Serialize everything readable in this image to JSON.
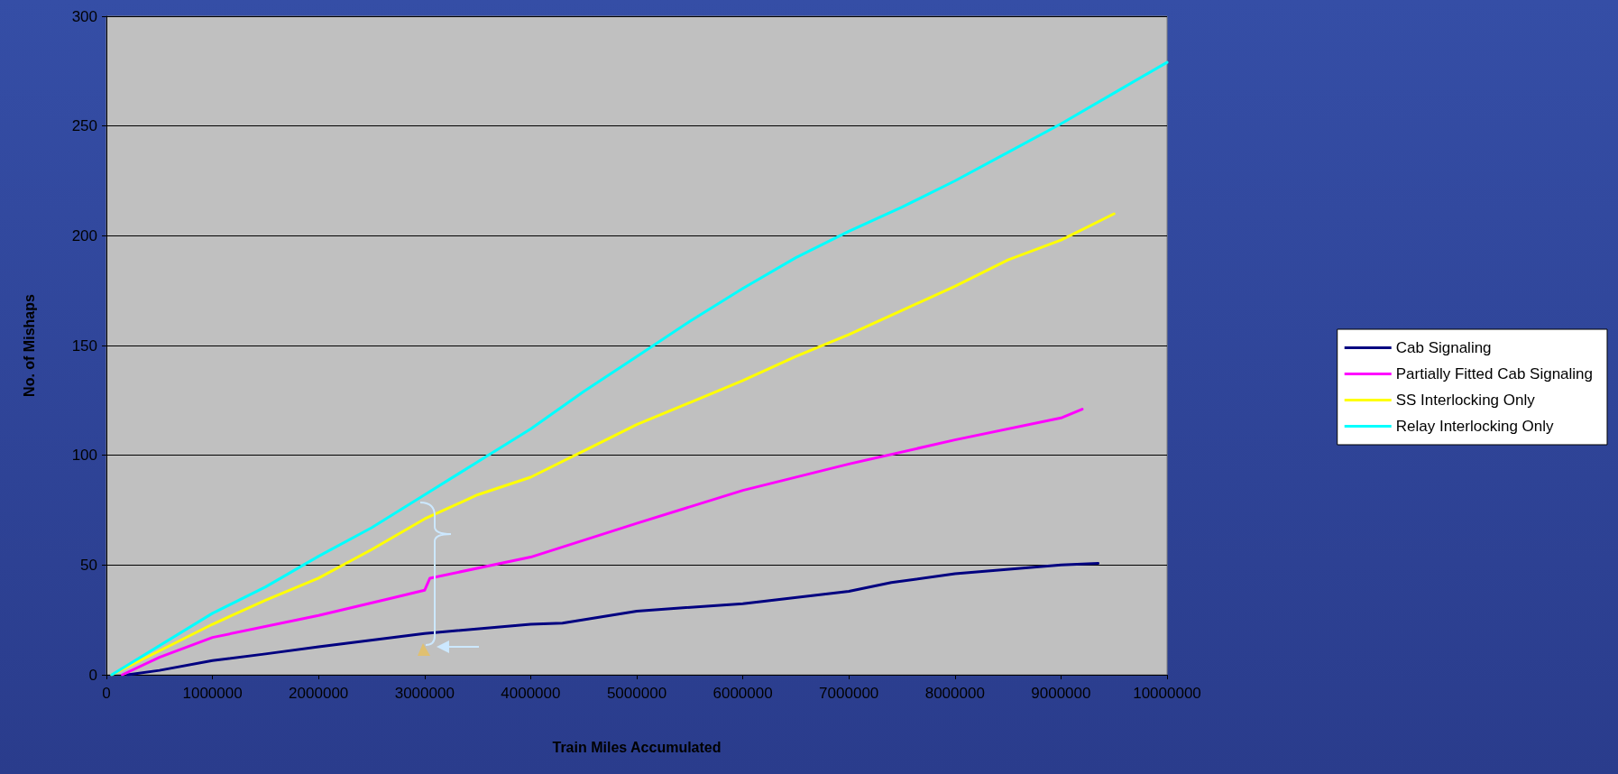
{
  "chart_data": {
    "type": "line",
    "xlabel": "Train Miles Accumulated",
    "ylabel": "No. of Mishaps",
    "xlim": [
      0,
      10000000
    ],
    "xticks": [
      0,
      1000000,
      2000000,
      3000000,
      4000000,
      5000000,
      6000000,
      7000000,
      8000000,
      9000000,
      10000000
    ],
    "ylim": [
      0,
      300
    ],
    "yticks": [
      0,
      50,
      100,
      150,
      200,
      250,
      300
    ],
    "grid": "y",
    "legend": "right",
    "marker": "none",
    "line_style": "solid",
    "series": [
      {
        "name": "Cab Signaling",
        "color": "#000080",
        "x": [
          200000,
          500000,
          1000000,
          1500000,
          2000000,
          3000000,
          4000000,
          4300000,
          5000000,
          6000000,
          7000000,
          7400000,
          8000000,
          9000000,
          9350000
        ],
        "values": [
          0,
          2,
          6.5,
          9.5,
          12.7,
          18.8,
          23,
          23.5,
          29,
          32.4,
          38,
          42,
          46,
          50,
          50.8
        ]
      },
      {
        "name": "Partially Fitted Cab Signaling",
        "color": "#ff00ff",
        "x": [
          150000,
          500000,
          1000000,
          2000000,
          2700000,
          3000000,
          3050000,
          4000000,
          5000000,
          6000000,
          7000000,
          8000000,
          9000000,
          9200000
        ],
        "values": [
          0,
          8,
          17,
          27,
          35,
          38.5,
          44,
          53.6,
          69,
          84,
          96,
          107,
          117,
          121
        ]
      },
      {
        "name": "SS Interlocking Only",
        "color": "#ffff00",
        "x": [
          50000,
          1000000,
          1500000,
          2000000,
          2500000,
          3000000,
          3500000,
          4000000,
          4500000,
          5000000,
          5500000,
          6000000,
          6500000,
          7000000,
          7500000,
          8000000,
          8500000,
          9000000,
          9500000
        ],
        "values": [
          0,
          23,
          34,
          44,
          57,
          71,
          82,
          90,
          102,
          114,
          124,
          134,
          145,
          155,
          166,
          177,
          189,
          198,
          210
        ]
      },
      {
        "name": "Relay Interlocking Only",
        "color": "#00ffff",
        "x": [
          50000,
          1000000,
          1500000,
          2000000,
          2500000,
          3000000,
          3500000,
          4000000,
          4500000,
          5000000,
          5500000,
          6000000,
          6500000,
          7000000,
          7500000,
          8000000,
          8500000,
          9000000,
          9500000,
          10000000
        ],
        "values": [
          0,
          28,
          40,
          54,
          67,
          82,
          97,
          112,
          129,
          145,
          161,
          176,
          190,
          202,
          213,
          225,
          238,
          251,
          265,
          279
        ]
      }
    ]
  }
}
